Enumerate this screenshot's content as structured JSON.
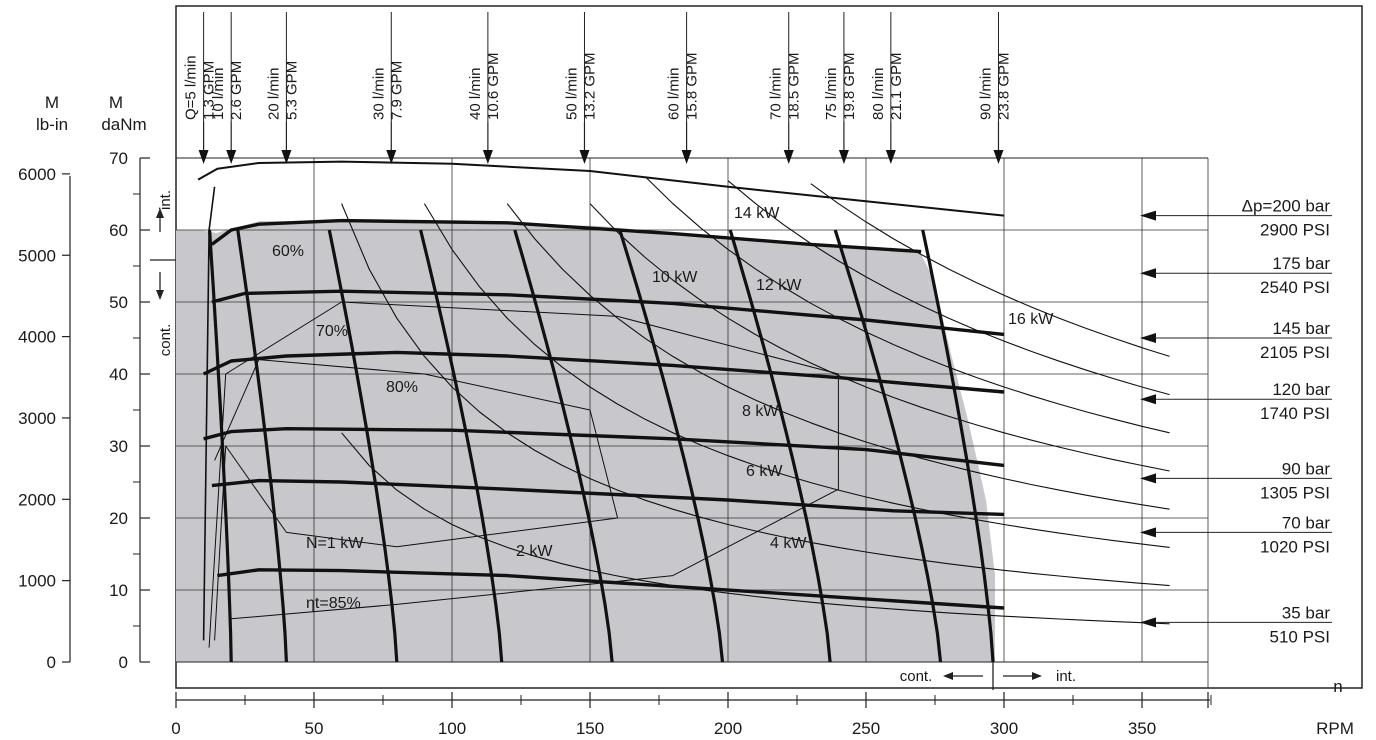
{
  "chart_data": {
    "type": "line",
    "title": "",
    "y_axis_left": {
      "label_lines": [
        "M",
        "lb-in"
      ],
      "ticks": [
        "0",
        "1000",
        "2000",
        "3000",
        "4000",
        "5000",
        "6000"
      ]
    },
    "y_axis_inner": {
      "label_lines": [
        "M",
        "daNm"
      ],
      "ticks": [
        "0",
        "10",
        "20",
        "30",
        "40",
        "50",
        "60",
        "70"
      ],
      "ylim": [
        0,
        70
      ]
    },
    "x_axis": {
      "label": "RPM",
      "n_label": "n",
      "ticks": [
        "0",
        "50",
        "100",
        "150",
        "200",
        "250",
        "300",
        "350"
      ],
      "xlim": [
        0,
        375
      ]
    },
    "flow_labels": [
      {
        "lpm": "Q=5 l/min",
        "gpm": "1.3 GPM",
        "x": 10
      },
      {
        "lpm": "10 l/min",
        "gpm": "2.6 GPM",
        "x": 20
      },
      {
        "lpm": "20 l/min",
        "gpm": "5.3 GPM",
        "x": 40
      },
      {
        "lpm": "30 l/min",
        "gpm": "7.9 GPM",
        "x": 78
      },
      {
        "lpm": "40 l/min",
        "gpm": "10.6 GPM",
        "x": 113
      },
      {
        "lpm": "50 l/min",
        "gpm": "13.2 GPM",
        "x": 148
      },
      {
        "lpm": "60 l/min",
        "gpm": "15.8 GPM",
        "x": 185
      },
      {
        "lpm": "70 l/min",
        "gpm": "18.5 GPM",
        "x": 222
      },
      {
        "lpm": "75 l/min",
        "gpm": "19.8 GPM",
        "x": 242
      },
      {
        "lpm": "80 l/min",
        "gpm": "21.1 GPM",
        "x": 259
      },
      {
        "lpm": "90 l/min",
        "gpm": "23.8 GPM",
        "x": 298
      }
    ],
    "pressure_labels": [
      {
        "bar": "Δp=200 bar",
        "psi": "2900 PSI",
        "torque": 62
      },
      {
        "bar": "175 bar",
        "psi": "2540 PSI",
        "torque": 54
      },
      {
        "bar": "145 bar",
        "psi": "2105 PSI",
        "torque": 45
      },
      {
        "bar": "120 bar",
        "psi": "1740 PSI",
        "torque": 36.5
      },
      {
        "bar": "90 bar",
        "psi": "1305 PSI",
        "torque": 25.5
      },
      {
        "bar": "70 bar",
        "psi": "1020 PSI",
        "torque": 18
      },
      {
        "bar": "35 bar",
        "psi": "510 PSI",
        "torque": 5.5
      }
    ],
    "power_labels": [
      "14 kW",
      "12 kW",
      "10 kW",
      "16 kW",
      "8 kW",
      "6 kW",
      "4 kW",
      "2 kW",
      "N=1 kW"
    ],
    "efficiency_labels": [
      "60%",
      "70%",
      "80%",
      "ηt=85%"
    ],
    "annotations": {
      "int": "int.",
      "cont": "cont."
    },
    "pressure_curves_torque": [
      {
        "p": 200,
        "points": [
          [
            8,
            67
          ],
          [
            15,
            68.5
          ],
          [
            30,
            69.3
          ],
          [
            60,
            69.5
          ],
          [
            100,
            69.2
          ],
          [
            150,
            68.2
          ],
          [
            200,
            66
          ],
          [
            250,
            64
          ],
          [
            300,
            62
          ]
        ]
      },
      {
        "p": 175,
        "points": [
          [
            13,
            58
          ],
          [
            20,
            60
          ],
          [
            30,
            60.8
          ],
          [
            60,
            61.3
          ],
          [
            120,
            61
          ],
          [
            180,
            59.5
          ],
          [
            230,
            58
          ],
          [
            270,
            57
          ]
        ]
      },
      {
        "p": 145,
        "points": [
          [
            13,
            50
          ],
          [
            25,
            51.2
          ],
          [
            60,
            51.5
          ],
          [
            120,
            51
          ],
          [
            180,
            49.8
          ],
          [
            250,
            47.5
          ],
          [
            300,
            45.5
          ]
        ]
      },
      {
        "p": 120,
        "points": [
          [
            10,
            40
          ],
          [
            20,
            41.8
          ],
          [
            40,
            42.5
          ],
          [
            80,
            43
          ],
          [
            120,
            42.5
          ],
          [
            180,
            41.2
          ],
          [
            240,
            39.5
          ],
          [
            300,
            37.5
          ]
        ]
      },
      {
        "p": 90,
        "points": [
          [
            10,
            31
          ],
          [
            20,
            32
          ],
          [
            40,
            32.4
          ],
          [
            100,
            32.2
          ],
          [
            180,
            31
          ],
          [
            250,
            29.5
          ],
          [
            300,
            27.3
          ]
        ]
      },
      {
        "p": 70,
        "points": [
          [
            13,
            24.5
          ],
          [
            30,
            25.2
          ],
          [
            60,
            25
          ],
          [
            120,
            24
          ],
          [
            200,
            22.5
          ],
          [
            260,
            21
          ],
          [
            300,
            20.5
          ]
        ]
      },
      {
        "p": 35,
        "points": [
          [
            15,
            12
          ],
          [
            30,
            12.8
          ],
          [
            60,
            12.7
          ],
          [
            120,
            12
          ],
          [
            180,
            10.5
          ],
          [
            240,
            9
          ],
          [
            300,
            7.5
          ]
        ]
      }
    ]
  }
}
